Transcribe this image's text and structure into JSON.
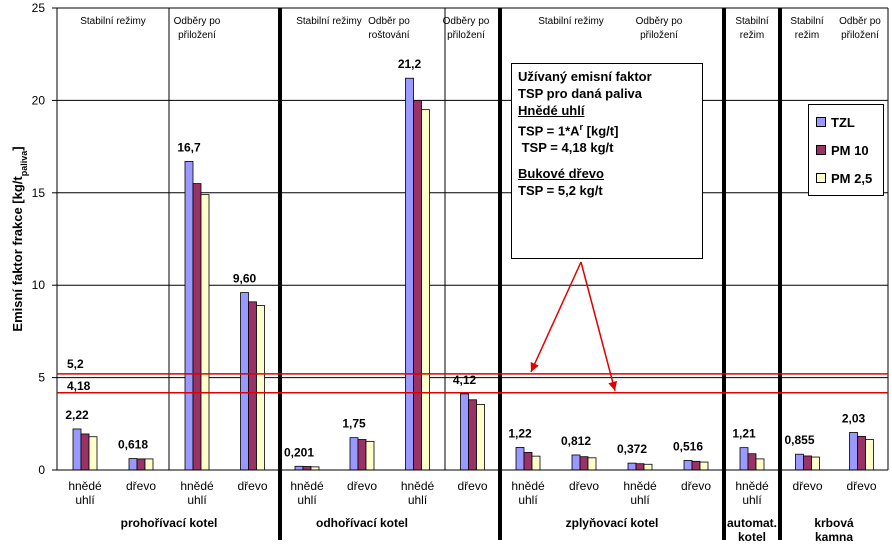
{
  "chart_data": {
    "type": "bar",
    "ylabel_main": "Emisní faktor frakce [kg/t",
    "ylabel_sub": "paliva",
    "ylabel_end": "]",
    "ylim": [
      0,
      25
    ],
    "yticks": [
      "0",
      "5",
      "10",
      "15",
      "20",
      "25"
    ],
    "categories": [
      "hnědé uhlí",
      "dřevo",
      "hnědé uhlí",
      "dřevo",
      "hnědé uhlí",
      "dřevo",
      "hnědé uhlí",
      "dřevo",
      "hnědé uhlí",
      "dřevo",
      "hnědé uhlí",
      "dřevo",
      "hnědé uhlí",
      "dřevo",
      "dřevo"
    ],
    "series": [
      {
        "name": "TZL",
        "color": "#9999ff",
        "values": [
          2.22,
          0.618,
          16.7,
          9.6,
          0.201,
          1.75,
          21.2,
          4.12,
          1.22,
          0.812,
          0.372,
          0.516,
          1.21,
          0.855,
          2.03
        ]
      },
      {
        "name": "PM 10",
        "color": "#993366",
        "values": [
          1.95,
          0.6,
          15.5,
          9.1,
          0.19,
          1.65,
          20.0,
          3.8,
          0.95,
          0.72,
          0.34,
          0.47,
          0.88,
          0.76,
          1.82
        ]
      },
      {
        "name": "PM 2,5",
        "color": "#ffffcc",
        "values": [
          1.8,
          0.6,
          14.9,
          8.9,
          0.17,
          1.55,
          19.5,
          3.55,
          0.75,
          0.66,
          0.31,
          0.43,
          0.6,
          0.7,
          1.65
        ]
      }
    ],
    "data_labels": [
      "2,22",
      "0,618",
      "16,7",
      "9,60",
      "0,201",
      "1,75",
      "21,2",
      "4,12",
      "1,22",
      "0,812",
      "0,372",
      "0,516",
      "1,21",
      "0,855",
      "2,03"
    ],
    "section_headers": [
      {
        "lines": [
          "Stabilní režimy"
        ]
      },
      {
        "lines": [
          "Odběry po",
          "přiložení"
        ]
      },
      {
        "lines": [
          "Stabilní režimy"
        ]
      },
      {
        "lines": [
          "Odběr po",
          "roštování"
        ]
      },
      {
        "lines": [
          "Odběry po",
          "přiložení"
        ]
      },
      {
        "lines": [
          "Stabilní režimy"
        ]
      },
      {
        "lines": [
          "Odběry po",
          "přiložení"
        ]
      },
      {
        "lines": [
          "Stabilní",
          "režim"
        ]
      },
      {
        "lines": [
          "Stabilní",
          "režim"
        ]
      },
      {
        "lines": [
          "Odběr po",
          "přiložení"
        ]
      }
    ],
    "group_labels": [
      {
        "lines": [
          "prohořívací kotel"
        ]
      },
      {
        "lines": [
          "odhořívací kotel"
        ]
      },
      {
        "lines": [
          "zplyňovací kotel"
        ]
      },
      {
        "lines": [
          "automat.",
          "kotel"
        ]
      },
      {
        "lines": [
          "krbová",
          "kamna"
        ]
      }
    ],
    "reference_lines": [
      {
        "value": 5.2,
        "label": "5,2",
        "color": "#e00000"
      },
      {
        "value": 4.18,
        "label": "4,18",
        "color": "#e00000"
      }
    ],
    "note": {
      "line1": "Užívaný emisní faktor",
      "line2": "TSP pro daná paliva",
      "heading1": "Hnědé uhlí",
      "formula_a": "TSP = 1*A",
      "formula_sup": "r",
      "formula_b": " [kg/t]",
      "result1": " TSP = 4,18 kg/t",
      "heading2": "Bukové dřevo",
      "result2": "TSP = 5,2 kg/t"
    },
    "legend_position": "right",
    "grid": "horizontal"
  }
}
